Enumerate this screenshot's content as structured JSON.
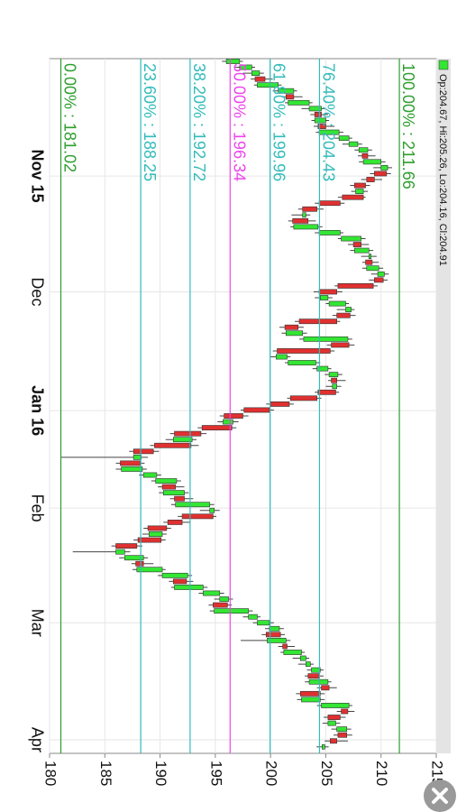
{
  "chart_data": {
    "type": "candlestick",
    "legend_text": "Op:204.67, Hi:205.26, Lo:204.16, Cl:204.91",
    "up_color": "#33e633",
    "down_color": "#e03030",
    "xlim": [
      180,
      215
    ],
    "xticks": [
      180,
      185,
      190,
      195,
      200,
      205,
      210,
      215
    ],
    "time_ticks": [
      {
        "value": 19.4,
        "label": "Nov 15",
        "bold": true
      },
      {
        "value": 39,
        "label": "Dec",
        "bold": false
      },
      {
        "value": 59.1,
        "label": "Jan 16",
        "bold": true
      },
      {
        "value": 75.6,
        "label": "Feb",
        "bold": false
      },
      {
        "value": 95,
        "label": "Mar",
        "bold": false
      },
      {
        "value": 114.8,
        "label": "Apr",
        "bold": false
      }
    ],
    "grid": true,
    "levels": [
      {
        "label": "100.00% : 211.66",
        "value": 211.66,
        "color": "#2e9e2e"
      },
      {
        "label": "76.40% : 204.43",
        "value": 204.43,
        "color": "#33bbbb"
      },
      {
        "label": "61.80% : 199.96",
        "value": 199.96,
        "color": "#33bbbb"
      },
      {
        "label": "50.00% : 196.34",
        "value": 196.34,
        "color": "#ee44ee"
      },
      {
        "label": "38.20% : 192.72",
        "value": 192.72,
        "color": "#33bbbb"
      },
      {
        "label": "23.60% : 188.25",
        "value": 188.25,
        "color": "#33bbbb"
      },
      {
        "label": "0.00% : 181.02",
        "value": 181.02,
        "color": "#2e9e2e"
      }
    ],
    "ohlc": [
      [
        196.0,
        197.5,
        195.6,
        197.2
      ],
      [
        197.2,
        198.6,
        196.8,
        198.3
      ],
      [
        198.3,
        199.4,
        197.5,
        199.0
      ],
      [
        199.5,
        200.2,
        198.2,
        198.6
      ],
      [
        198.8,
        201.0,
        198.5,
        200.7
      ],
      [
        200.7,
        202.4,
        200.2,
        202.1
      ],
      [
        202.1,
        202.9,
        201.0,
        201.4
      ],
      [
        201.6,
        203.8,
        201.3,
        203.5
      ],
      [
        203.5,
        204.9,
        202.8,
        204.6
      ],
      [
        204.6,
        205.2,
        203.6,
        204.0
      ],
      [
        204.0,
        205.3,
        203.7,
        205.0
      ],
      [
        205.0,
        205.8,
        203.9,
        204.3
      ],
      [
        204.4,
        206.6,
        204.1,
        206.2
      ],
      [
        206.2,
        207.4,
        205.8,
        207.1
      ],
      [
        207.1,
        208.3,
        206.5,
        207.9
      ],
      [
        208.0,
        209.2,
        207.6,
        208.8
      ],
      [
        208.8,
        209.5,
        207.9,
        208.3
      ],
      [
        208.4,
        210.4,
        208.0,
        210.0
      ],
      [
        210.0,
        211.0,
        209.3,
        210.6
      ],
      [
        210.5,
        210.9,
        209.0,
        209.4
      ],
      [
        209.4,
        210.1,
        208.2,
        208.7
      ],
      [
        208.6,
        209.0,
        207.2,
        207.6
      ],
      [
        207.7,
        208.8,
        207.3,
        208.4
      ],
      [
        208.4,
        208.6,
        206.1,
        206.5
      ],
      [
        206.3,
        206.7,
        204.0,
        204.4
      ],
      [
        204.2,
        204.8,
        202.5,
        202.9
      ],
      [
        202.9,
        203.6,
        201.9,
        203.2
      ],
      [
        203.4,
        204.1,
        201.6,
        202.0
      ],
      [
        202.1,
        204.7,
        201.8,
        204.3
      ],
      [
        204.4,
        206.6,
        204.0,
        206.3
      ],
      [
        206.4,
        208.6,
        206.1,
        208.2
      ],
      [
        208.2,
        208.9,
        207.0,
        207.5
      ],
      [
        207.6,
        209.3,
        207.2,
        208.9
      ],
      [
        208.9,
        209.6,
        208.2,
        209.1
      ],
      [
        209.2,
        209.8,
        208.3,
        208.6
      ],
      [
        208.7,
        210.2,
        208.3,
        209.8
      ],
      [
        209.7,
        210.7,
        209.1,
        210.3
      ],
      [
        210.2,
        210.6,
        208.9,
        209.4
      ],
      [
        209.3,
        209.7,
        205.8,
        206.1
      ],
      [
        206.0,
        206.5,
        203.9,
        204.4
      ],
      [
        204.5,
        205.6,
        204.0,
        205.2
      ],
      [
        205.3,
        207.1,
        205.0,
        206.8
      ],
      [
        206.8,
        207.6,
        206.0,
        207.3
      ],
      [
        207.2,
        207.7,
        205.6,
        206.0
      ],
      [
        206.0,
        206.3,
        202.2,
        202.6
      ],
      [
        202.5,
        203.0,
        200.8,
        201.3
      ],
      [
        201.4,
        203.3,
        201.0,
        202.9
      ],
      [
        203.0,
        207.4,
        202.6,
        207.0
      ],
      [
        207.1,
        207.6,
        205.1,
        205.5
      ],
      [
        205.4,
        205.8,
        200.2,
        200.6
      ],
      [
        200.5,
        201.8,
        200.0,
        201.5
      ],
      [
        201.6,
        204.5,
        201.3,
        204.1
      ],
      [
        204.2,
        205.5,
        203.8,
        205.2
      ],
      [
        205.3,
        206.5,
        204.9,
        206.1
      ],
      [
        206.0,
        206.8,
        205.2,
        205.5
      ],
      [
        205.6,
        206.4,
        205.0,
        206.0
      ],
      [
        205.9,
        206.2,
        204.0,
        204.3
      ],
      [
        204.2,
        204.6,
        201.5,
        201.8
      ],
      [
        201.7,
        202.1,
        199.6,
        200.0
      ],
      [
        199.9,
        200.3,
        197.3,
        197.6
      ],
      [
        197.5,
        198.0,
        195.4,
        195.8
      ],
      [
        195.7,
        197.1,
        195.2,
        196.6
      ],
      [
        196.5,
        196.9,
        193.4,
        193.8
      ],
      [
        193.7,
        194.2,
        190.9,
        191.3
      ],
      [
        191.2,
        193.3,
        190.5,
        192.9
      ],
      [
        192.8,
        193.5,
        189.1,
        189.5
      ],
      [
        189.4,
        189.9,
        187.2,
        187.6
      ],
      [
        187.6,
        188.9,
        181.0,
        188.3
      ],
      [
        188.2,
        188.6,
        186.0,
        186.4
      ],
      [
        186.5,
        188.8,
        186.0,
        188.4
      ],
      [
        188.5,
        190.1,
        188.1,
        189.7
      ],
      [
        189.6,
        191.9,
        189.2,
        191.5
      ],
      [
        191.4,
        192.2,
        189.8,
        190.2
      ],
      [
        190.3,
        192.6,
        189.9,
        192.2
      ],
      [
        192.2,
        193.0,
        190.9,
        191.3
      ],
      [
        191.4,
        194.9,
        191.0,
        194.5
      ],
      [
        194.5,
        195.4,
        193.6,
        194.9
      ],
      [
        194.8,
        195.1,
        191.6,
        192.0
      ],
      [
        192.0,
        192.7,
        190.3,
        190.7
      ],
      [
        190.6,
        191.0,
        188.5,
        188.9
      ],
      [
        189.0,
        190.6,
        188.4,
        190.2
      ],
      [
        190.1,
        190.5,
        187.6,
        188.0
      ],
      [
        187.9,
        188.4,
        185.6,
        186.0
      ],
      [
        186.0,
        187.3,
        182.1,
        186.8
      ],
      [
        186.8,
        188.9,
        186.3,
        188.5
      ],
      [
        188.5,
        189.4,
        187.4,
        187.8
      ],
      [
        187.9,
        190.5,
        187.5,
        190.2
      ],
      [
        190.2,
        192.9,
        189.8,
        192.5
      ],
      [
        192.4,
        193.0,
        190.8,
        191.2
      ],
      [
        191.3,
        194.3,
        191.0,
        193.9
      ],
      [
        193.9,
        195.8,
        193.5,
        195.4
      ],
      [
        195.4,
        196.6,
        194.9,
        196.2
      ],
      [
        196.1,
        196.5,
        194.4,
        194.8
      ],
      [
        194.9,
        198.4,
        194.5,
        198.0
      ],
      [
        198.0,
        199.1,
        197.5,
        198.8
      ],
      [
        198.8,
        200.3,
        198.4,
        199.9
      ],
      [
        199.9,
        201.2,
        199.5,
        200.8
      ],
      [
        200.9,
        201.3,
        199.2,
        199.6
      ],
      [
        199.7,
        201.8,
        197.3,
        201.4
      ],
      [
        201.5,
        202.2,
        200.7,
        201.1
      ],
      [
        201.2,
        203.1,
        200.9,
        202.8
      ],
      [
        202.7,
        203.5,
        202.0,
        203.2
      ],
      [
        203.2,
        203.9,
        202.5,
        203.6
      ],
      [
        203.7,
        204.8,
        203.3,
        204.5
      ],
      [
        204.4,
        204.8,
        203.1,
        203.4
      ],
      [
        203.5,
        205.5,
        203.1,
        205.2
      ],
      [
        205.3,
        206.0,
        204.2,
        204.6
      ],
      [
        204.5,
        204.9,
        202.3,
        202.7
      ],
      [
        202.8,
        204.9,
        202.4,
        204.5
      ],
      [
        204.6,
        207.4,
        204.2,
        207.1
      ],
      [
        207.0,
        207.6,
        206.0,
        206.4
      ],
      [
        206.3,
        206.8,
        204.8,
        205.2
      ],
      [
        205.2,
        206.3,
        204.7,
        205.9
      ],
      [
        206.0,
        207.3,
        205.5,
        206.9
      ],
      [
        206.9,
        207.4,
        205.7,
        206.1
      ],
      [
        206.0,
        207.0,
        204.9,
        205.4
      ],
      [
        204.67,
        205.26,
        204.16,
        204.91
      ]
    ]
  }
}
